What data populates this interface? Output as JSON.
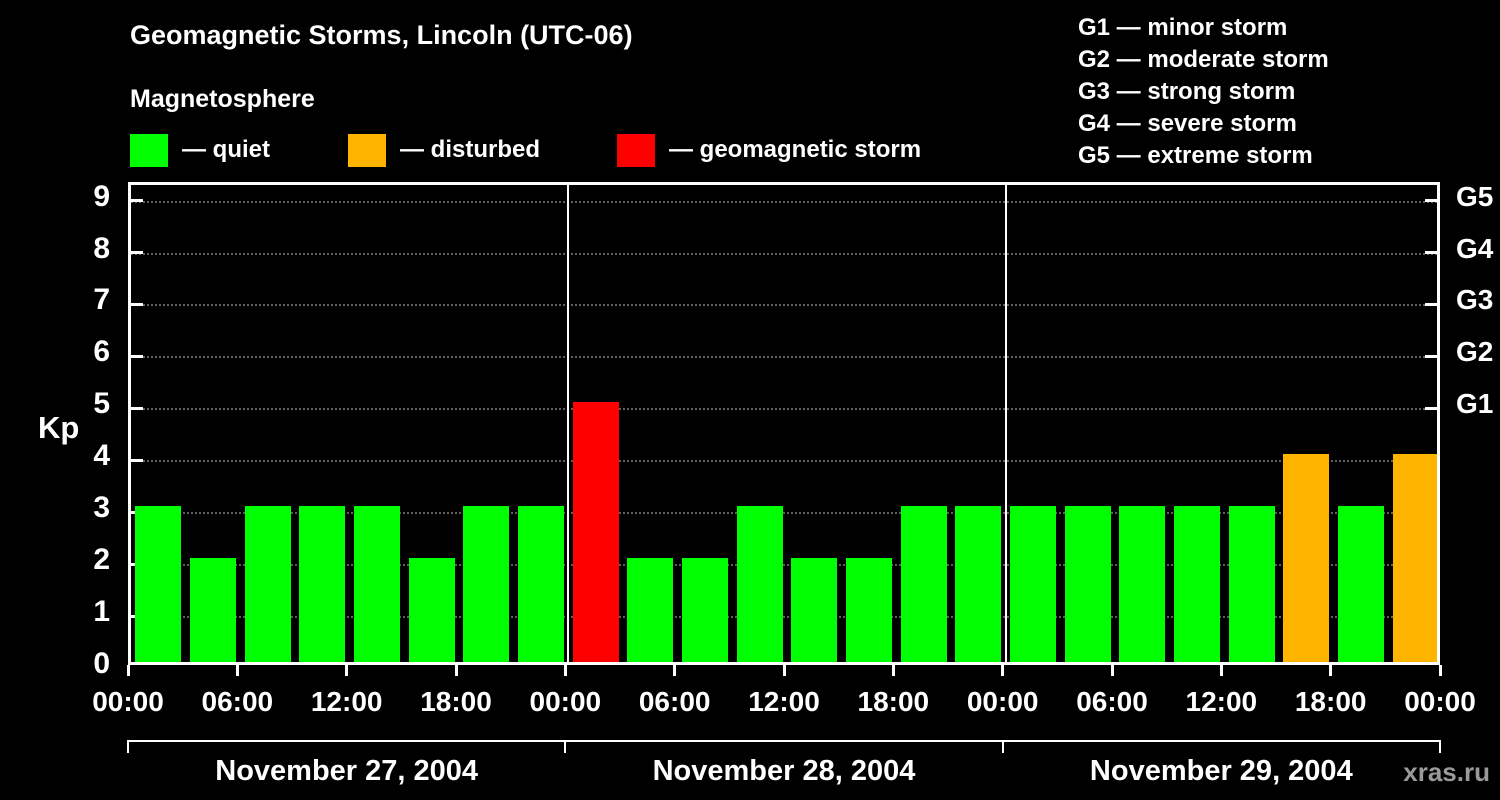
{
  "title": "Geomagnetic Storms, Lincoln (UTC-06)",
  "subtitle": "Magnetosphere",
  "colors": {
    "quiet": "#00ff00",
    "disturbed": "#ffb400",
    "storm": "#ff0000",
    "background": "#000000",
    "text": "#ffffff",
    "grid": "#606060",
    "watermark": "#9a9a9a"
  },
  "legend": {
    "quiet_label": "— quiet",
    "disturbed_label": "— disturbed",
    "storm_label": "— geomagnetic storm"
  },
  "g_legend": [
    "G1 — minor storm",
    "G2 — moderate storm",
    "G3 — strong storm",
    "G4 — severe storm",
    "G5 — extreme storm"
  ],
  "watermark": "xras.ru",
  "chart_data": {
    "type": "bar",
    "title": "Geomagnetic Storms, Lincoln (UTC-06)",
    "ylabel": "Kp",
    "ylim": [
      0,
      9.3
    ],
    "yticks": [
      0,
      1,
      2,
      3,
      4,
      5,
      6,
      7,
      8,
      9
    ],
    "grid": "dotted-horizontal",
    "right_axis_labels": [
      {
        "label": "G1",
        "value": 5
      },
      {
        "label": "G2",
        "value": 6
      },
      {
        "label": "G3",
        "value": 7
      },
      {
        "label": "G4",
        "value": 8
      },
      {
        "label": "G5",
        "value": 9
      }
    ],
    "time_ticks": [
      "00:00",
      "06:00",
      "12:00",
      "18:00"
    ],
    "end_time_tick": "00:00",
    "color_rule": {
      "quiet_max": 3,
      "disturbed_max": 4
    },
    "days": [
      {
        "date": "November 27, 2004",
        "values": [
          3,
          2,
          3,
          3,
          3,
          2,
          3,
          3
        ]
      },
      {
        "date": "November 28, 2004",
        "values": [
          5,
          2,
          2,
          3,
          2,
          2,
          3,
          3
        ]
      },
      {
        "date": "November 29, 2004",
        "values": [
          3,
          3,
          3,
          3,
          3,
          4,
          3,
          4
        ]
      }
    ]
  }
}
